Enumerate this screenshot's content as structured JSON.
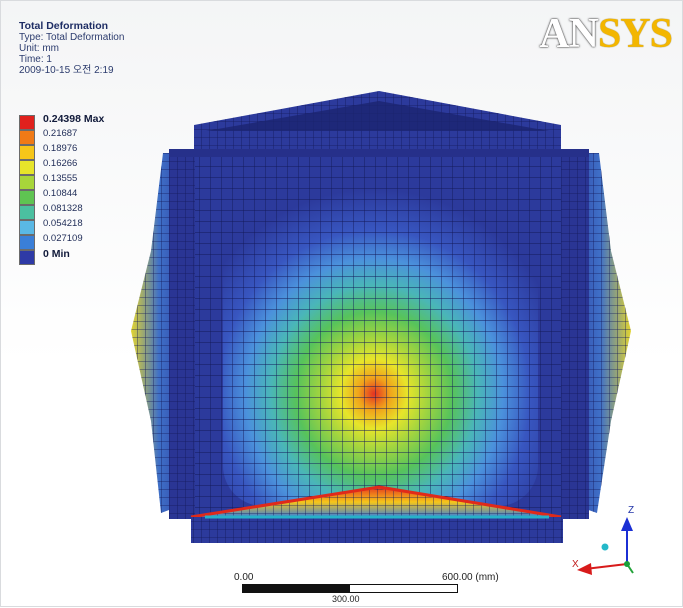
{
  "info": {
    "title": "Total Deformation",
    "type": "Type: Total Deformation",
    "unit": "Unit: mm",
    "time": "Time: 1",
    "date": "2009-10-15 오전 2:19"
  },
  "legend": {
    "items": [
      {
        "label": "0.24398 Max",
        "color": "#e0211d",
        "strong": true
      },
      {
        "label": "0.21687",
        "color": "#f07a16"
      },
      {
        "label": "0.18976",
        "color": "#f6c619"
      },
      {
        "label": "0.16266",
        "color": "#e7e52a"
      },
      {
        "label": "0.13555",
        "color": "#a8d63a"
      },
      {
        "label": "0.10844",
        "color": "#5fc452"
      },
      {
        "label": "0.081328",
        "color": "#4bc0a0"
      },
      {
        "label": "0.054218",
        "color": "#5ab8e5"
      },
      {
        "label": "0.027109",
        "color": "#3a7fd8"
      },
      {
        "label": "0 Min",
        "color": "#2e3aa6",
        "strong": true
      }
    ]
  },
  "logo": {
    "part1": "AN",
    "part2": "SYS"
  },
  "scale": {
    "left": "0.00",
    "right": "600.00 (mm)",
    "mid": "300.00"
  },
  "triad": {
    "z": "Z",
    "x": "X"
  },
  "colors": {
    "base": "#2c3a9c",
    "mesh": "#13195a",
    "accent": "#f3b600"
  }
}
